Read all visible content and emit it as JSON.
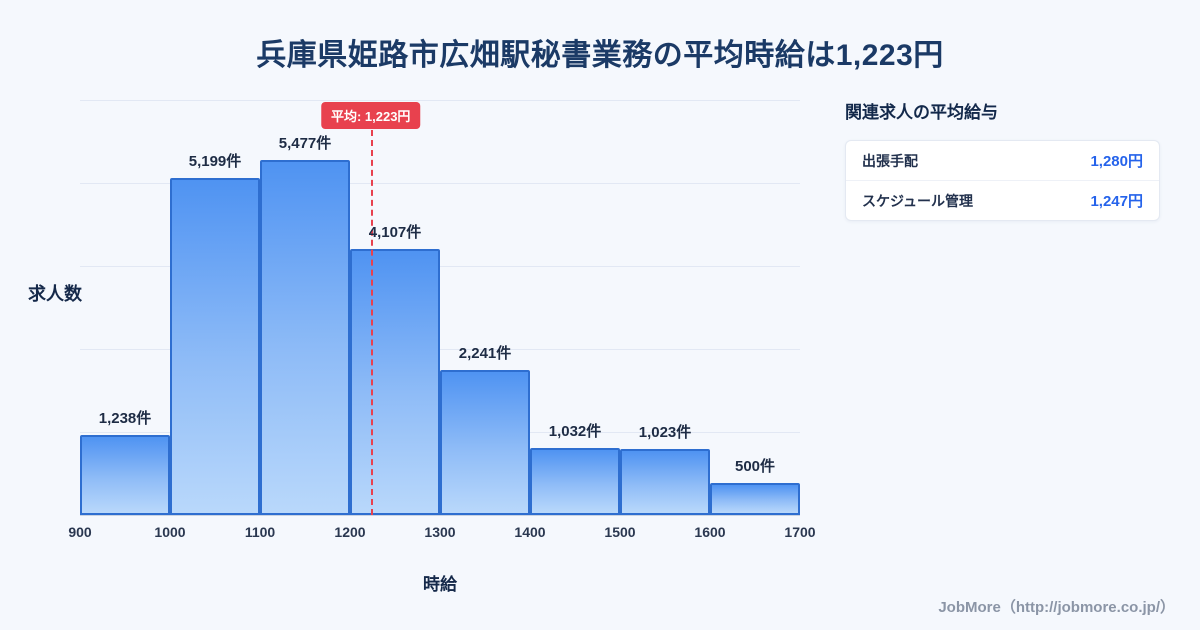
{
  "page": {
    "title": "兵庫県姫路市広畑駅秘書業務の平均時給は1,223円",
    "footer": "JobMore（http://jobmore.co.jp/）"
  },
  "chart_data": {
    "type": "bar",
    "title": "兵庫県姫路市広畑駅秘書業務の平均時給は1,223円",
    "xlabel": "時給",
    "ylabel": "求人数",
    "bin_edges": [
      900,
      1000,
      1100,
      1200,
      1300,
      1400,
      1500,
      1600,
      1700
    ],
    "x_tick_labels": [
      "900",
      "1000",
      "1100",
      "1200",
      "1300",
      "1400",
      "1500",
      "1600",
      "1700"
    ],
    "values": [
      1238,
      5199,
      5477,
      4107,
      2241,
      1032,
      1023,
      500
    ],
    "bar_labels": [
      "1,238件",
      "5,199件",
      "5,477件",
      "4,107件",
      "2,241件",
      "1,032件",
      "1,023件",
      "500件"
    ],
    "average": {
      "value": 1223,
      "label": "平均: 1,223円"
    },
    "xlim": [
      900,
      1700
    ],
    "ylim": [
      0,
      6400
    ],
    "grid": "horizontal",
    "legend": "none"
  },
  "related": {
    "heading": "関連求人の平均給与",
    "rows": [
      {
        "label": "出張手配",
        "value": "1,280円"
      },
      {
        "label": "スケジュール管理",
        "value": "1,247円"
      }
    ]
  },
  "colors": {
    "background": "#f5f8fd",
    "title_text": "#1b3a66",
    "bar_fill_top": "#4f93f2",
    "bar_fill_bottom": "#b9d8fb",
    "bar_border": "#2e6ed0",
    "average_line": "#e8414e",
    "value_accent": "#2563eb",
    "footer_text": "#8b95a6"
  }
}
